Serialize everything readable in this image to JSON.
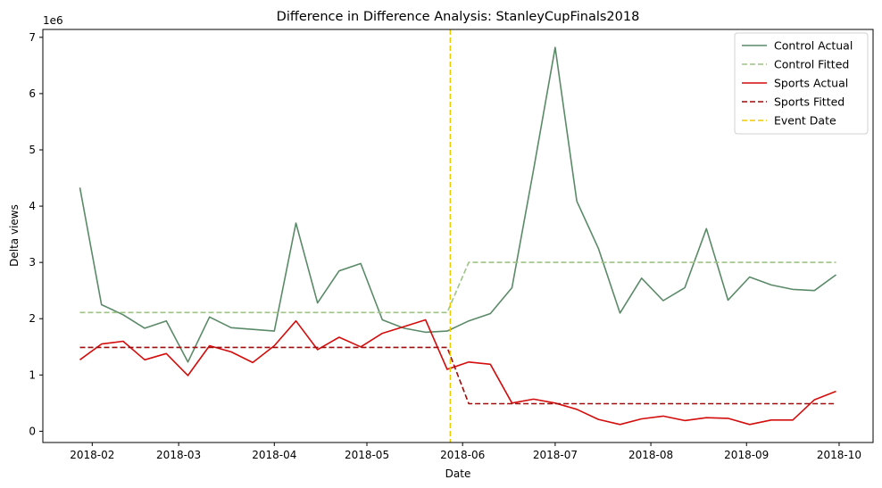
{
  "chart_data": {
    "type": "line",
    "title": "Difference in Difference Analysis: StanleyCupFinals2018",
    "xlabel": "Date",
    "ylabel": "Delta views",
    "y_offset_label": "1e6",
    "y_scale": 1000000,
    "xlim": [
      "2018-01-16",
      "2018-10-12"
    ],
    "ylim": [
      -200000,
      7140000
    ],
    "x_ticks": [
      "2018-02-01",
      "2018-03-01",
      "2018-04-01",
      "2018-05-01",
      "2018-06-01",
      "2018-07-01",
      "2018-08-01",
      "2018-09-01",
      "2018-10-01"
    ],
    "x_tick_labels": [
      "2018-02",
      "2018-03",
      "2018-04",
      "2018-05",
      "2018-06",
      "2018-07",
      "2018-08",
      "2018-09",
      "2018-10"
    ],
    "y_ticks": [
      0,
      1000000,
      2000000,
      3000000,
      4000000,
      5000000,
      6000000,
      7000000
    ],
    "y_tick_labels": [
      "0",
      "1",
      "2",
      "3",
      "4",
      "5",
      "6",
      "7"
    ],
    "legend_position": "top-right",
    "grid": false,
    "series": [
      {
        "name": "Control Actual",
        "color": "#5a8a68",
        "dash": "solid",
        "x": [
          "2018-01-28",
          "2018-02-04",
          "2018-02-11",
          "2018-02-18",
          "2018-02-25",
          "2018-03-04",
          "2018-03-11",
          "2018-03-18",
          "2018-03-25",
          "2018-04-01",
          "2018-04-08",
          "2018-04-15",
          "2018-04-22",
          "2018-04-29",
          "2018-05-06",
          "2018-05-13",
          "2018-05-20",
          "2018-05-27",
          "2018-06-03",
          "2018-06-10",
          "2018-06-17",
          "2018-06-24",
          "2018-07-01",
          "2018-07-08",
          "2018-07-15",
          "2018-07-22",
          "2018-07-29",
          "2018-08-05",
          "2018-08-12",
          "2018-08-19",
          "2018-08-26",
          "2018-09-02",
          "2018-09-09",
          "2018-09-16",
          "2018-09-23",
          "2018-09-30"
        ],
        "y": [
          4330000,
          2250000,
          2070000,
          1830000,
          1960000,
          1230000,
          2030000,
          1840000,
          1810000,
          1780000,
          3700000,
          2280000,
          2850000,
          2980000,
          1980000,
          1830000,
          1760000,
          1780000,
          1960000,
          2090000,
          2550000,
          4650000,
          6820000,
          4090000,
          3250000,
          2100000,
          2720000,
          2320000,
          2550000,
          3600000,
          2330000,
          2740000,
          2600000,
          2520000,
          2500000,
          2780000
        ]
      },
      {
        "name": "Control Fitted",
        "color": "#9dc386",
        "dash": "dashed",
        "x": [
          "2018-01-28",
          "2018-05-27",
          "2018-06-03",
          "2018-09-30"
        ],
        "y": [
          2110000,
          2110000,
          3000000,
          3000000
        ]
      },
      {
        "name": "Sports Actual",
        "color": "#d40c0c",
        "dash": "solid",
        "x": [
          "2018-01-28",
          "2018-02-04",
          "2018-02-11",
          "2018-02-18",
          "2018-02-25",
          "2018-03-04",
          "2018-03-11",
          "2018-03-18",
          "2018-03-25",
          "2018-04-01",
          "2018-04-08",
          "2018-04-15",
          "2018-04-22",
          "2018-04-29",
          "2018-05-06",
          "2018-05-13",
          "2018-05-20",
          "2018-05-27",
          "2018-06-03",
          "2018-06-10",
          "2018-06-17",
          "2018-06-24",
          "2018-07-01",
          "2018-07-08",
          "2018-07-15",
          "2018-07-22",
          "2018-07-29",
          "2018-08-05",
          "2018-08-12",
          "2018-08-19",
          "2018-08-26",
          "2018-09-02",
          "2018-09-09",
          "2018-09-16",
          "2018-09-23",
          "2018-09-30"
        ],
        "y": [
          1270000,
          1550000,
          1600000,
          1270000,
          1380000,
          990000,
          1520000,
          1410000,
          1220000,
          1520000,
          1960000,
          1450000,
          1670000,
          1500000,
          1740000,
          1860000,
          1980000,
          1100000,
          1230000,
          1190000,
          500000,
          570000,
          500000,
          390000,
          210000,
          120000,
          220000,
          270000,
          190000,
          240000,
          230000,
          120000,
          200000,
          200000,
          560000,
          710000
        ]
      },
      {
        "name": "Sports Fitted",
        "color": "#a00c0c",
        "dash": "dashed",
        "x": [
          "2018-01-28",
          "2018-05-27",
          "2018-06-03",
          "2018-09-30"
        ],
        "y": [
          1490000,
          1490000,
          490000,
          490000
        ]
      },
      {
        "name": "Event Date",
        "color": "#f0c800",
        "dash": "dashed",
        "type": "vline",
        "x": [
          "2018-05-28"
        ]
      }
    ]
  }
}
